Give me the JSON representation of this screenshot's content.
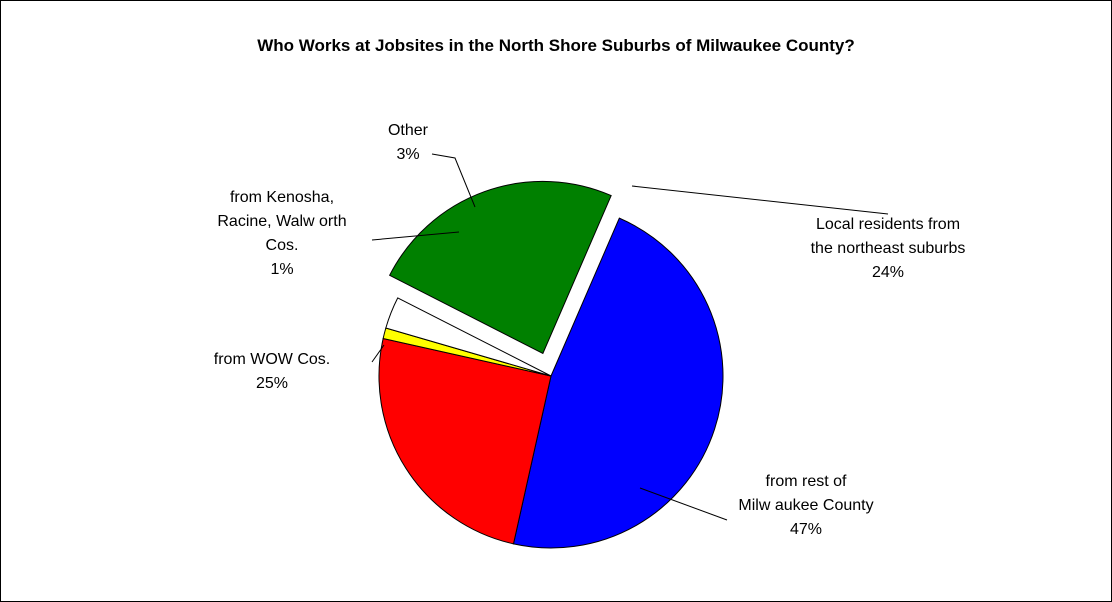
{
  "chart_data": {
    "type": "pie",
    "title": "Who Works at Jobsites in the North Shore Suburbs of Milwaukee County?",
    "slices": [
      {
        "label": [
          "Local residents from",
          "the northeast suburbs"
        ],
        "pct_label": "24%",
        "value": 24,
        "color": "#008000",
        "exploded": true
      },
      {
        "label": [
          "from rest of",
          "Milw aukee County"
        ],
        "pct_label": "47%",
        "value": 47,
        "color": "#0000FF",
        "exploded": false
      },
      {
        "label": [
          "from WOW Cos."
        ],
        "pct_label": "25%",
        "value": 25,
        "color": "#FF0000",
        "exploded": false
      },
      {
        "label": [
          "from Kenosha,",
          "Racine, Walw orth",
          "Cos."
        ],
        "pct_label": "1%",
        "value": 1,
        "color": "#FFFF00",
        "exploded": false
      },
      {
        "label": [
          "Other"
        ],
        "pct_label": "3%",
        "value": 3,
        "color": "#FFFFFF",
        "exploded": false
      }
    ]
  }
}
